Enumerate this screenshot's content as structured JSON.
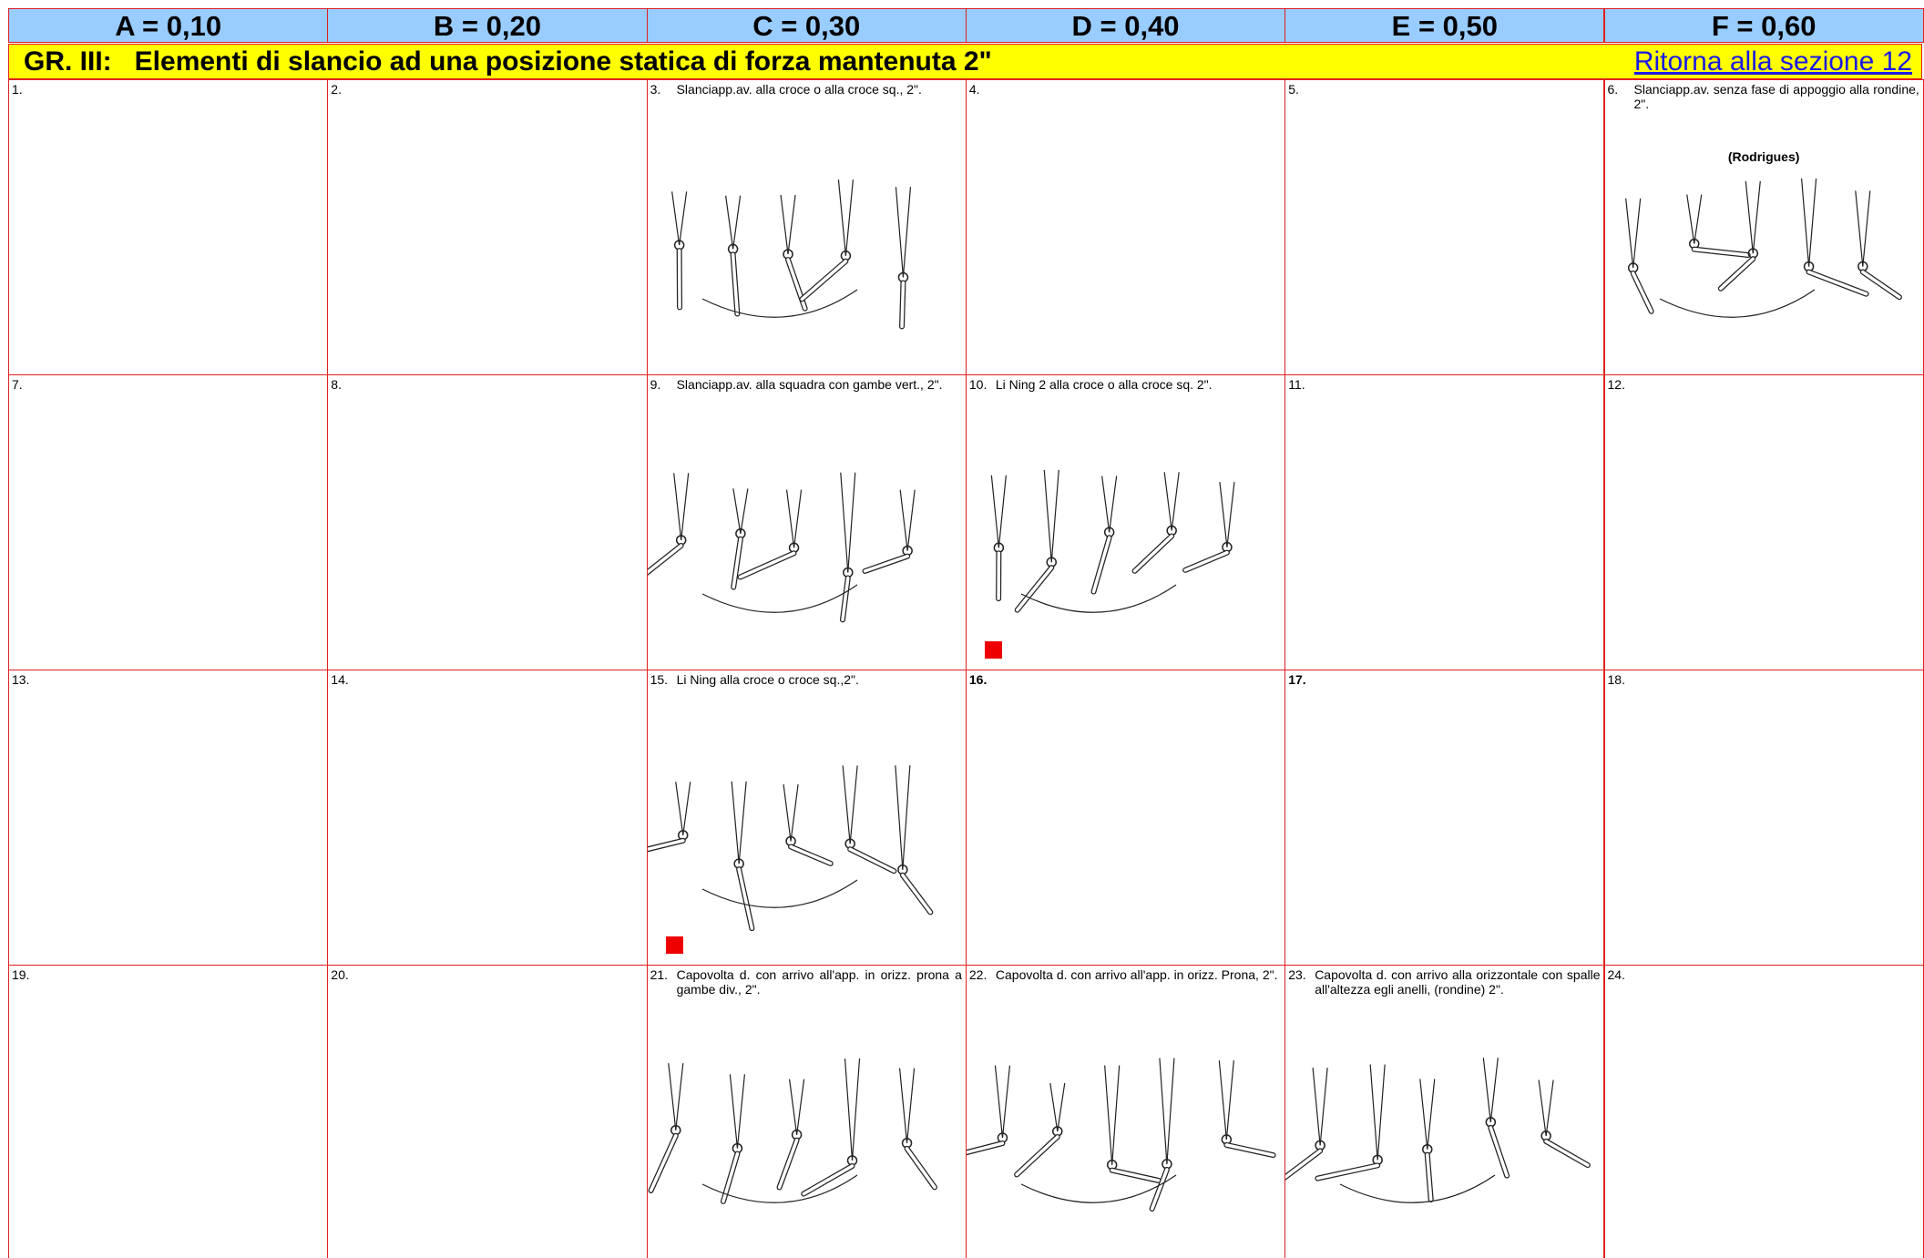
{
  "header": {
    "columns": [
      "A = 0,10",
      "B = 0,20",
      "C = 0,30",
      "D = 0,40",
      "E = 0,50",
      "F = 0,60"
    ]
  },
  "group": {
    "title": "GR. III:   Elementi di slancio ad una posizione statica di forza mantenuta 2\"",
    "link": "Ritorna alla sezione 12"
  },
  "table": {
    "rows": [
      [
        {
          "number": "1."
        },
        {
          "number": "2."
        },
        {
          "number": "3.",
          "text": "Slanciapp.av. alla croce o alla croce sq., 2\"."
        },
        {
          "number": "4."
        },
        {
          "number": "5."
        },
        {
          "number": "6.",
          "text": "Slanciapp.av. senza fase di appoggio alla rondine, 2\".",
          "note": "(Rodrigues)"
        }
      ],
      [
        {
          "number": "7."
        },
        {
          "number": "8."
        },
        {
          "number": "9.",
          "text": "Slanciapp.av. alla squadra con gambe vert., 2\"."
        },
        {
          "number": "10.",
          "text": "Li Ning 2 alla croce o alla croce sq. 2\".",
          "marked": true
        },
        {
          "number": "11."
        },
        {
          "number": "12."
        }
      ],
      [
        {
          "number": "13."
        },
        {
          "number": "14."
        },
        {
          "number": "15.",
          "text": "Li Ning alla croce o croce sq.,2\".",
          "marked": true
        },
        {
          "number": "16.",
          "bold": true
        },
        {
          "number": "17.",
          "bold": true
        },
        {
          "number": "18."
        }
      ],
      [
        {
          "number": "19."
        },
        {
          "number": "20."
        },
        {
          "number": "21.",
          "text": "Capovolta d. con arrivo all'app. in orizz. prona a gambe div., 2\"."
        },
        {
          "number": "22.",
          "text": "Capovolta d. con arrivo all'app. in orizz. Prona, 2\"."
        },
        {
          "number": "23.",
          "text": "Capovolta d. con arrivo alla orizzontale con spalle all'altezza egli anelli, (rondine)  2\"."
        },
        {
          "number": "24."
        }
      ]
    ]
  }
}
